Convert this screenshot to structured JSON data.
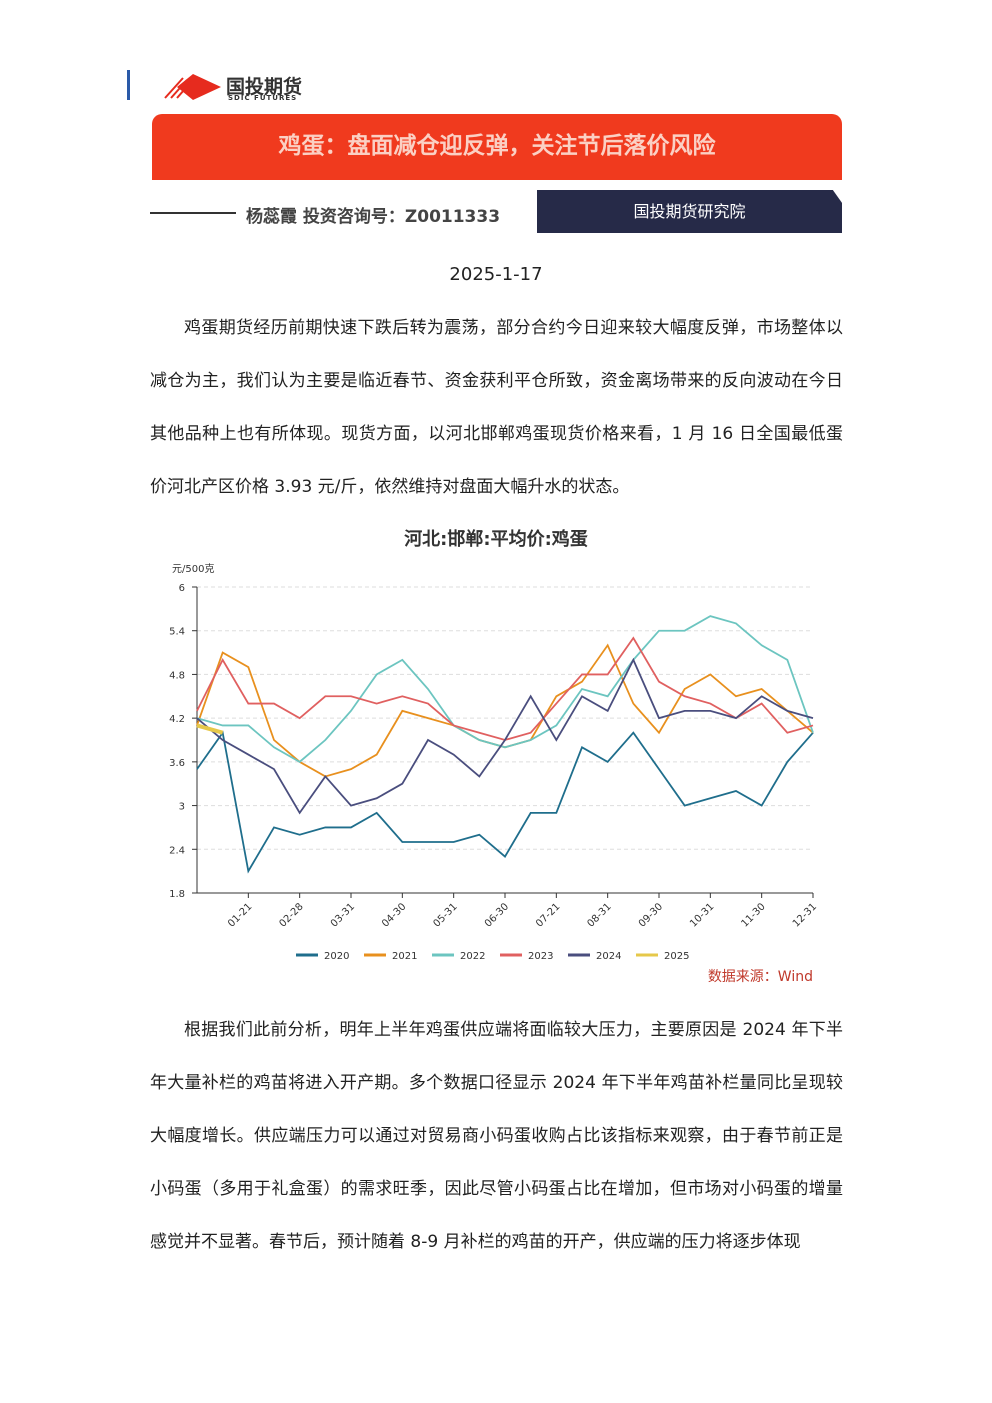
{
  "header": {
    "brand": "国投期货",
    "brand_en": "SDIC FUTURES",
    "title": "鸡蛋：盘面减仓迎反弹，关注节后落价风险",
    "author": "杨蕊霞  投资咨询号：Z0011333",
    "institute": "国投期货研究院",
    "date": "2025-1-17"
  },
  "paragraphs": [
    "鸡蛋期货经历前期快速下跌后转为震荡，部分合约今日迎来较大幅度反弹，市场整体以减仓为主，我们认为主要是临近春节、资金获利平仓所致，资金离场带来的反向波动在今日其他品种上也有所体现。现货方面，以河北邯郸鸡蛋现货价格来看，1 月 16 日全国最低蛋价河北产区价格 3.93 元/斤，依然维持对盘面大幅升水的状态。"
  ],
  "chart_data": {
    "type": "line",
    "title": "河北:邯郸:平均价:鸡蛋",
    "y_label": "元/500克",
    "source": "数据来源：Wind",
    "categories": [
      null,
      null,
      "01-21",
      null,
      "02-28",
      null,
      "03-31",
      null,
      "04-30",
      null,
      "05-31",
      null,
      "06-30",
      null,
      "07-21",
      null,
      "08-31",
      null,
      "09-30",
      null,
      "10-31",
      null,
      "11-30",
      null,
      "12-31"
    ],
    "ylim": [
      1.8,
      6
    ],
    "yticks": [
      1.8,
      2.4,
      3,
      3.6,
      4.2,
      4.8,
      5.4,
      6
    ],
    "grid": true,
    "series": [
      {
        "name": "2020",
        "color": "#1f6e8c",
        "values": [
          3.5,
          4.0,
          2.1,
          2.7,
          2.6,
          2.7,
          2.7,
          2.9,
          2.5,
          2.5,
          2.5,
          2.6,
          2.3,
          2.9,
          2.9,
          3.8,
          3.6,
          4.0,
          3.5,
          3.0,
          3.1,
          3.2,
          3.0,
          3.6,
          4.0
        ]
      },
      {
        "name": "2021",
        "color": "#e8901e",
        "values": [
          4.1,
          5.1,
          4.9,
          3.9,
          3.6,
          3.4,
          3.5,
          3.7,
          4.3,
          4.2,
          4.1,
          3.9,
          3.8,
          3.9,
          4.5,
          4.7,
          5.2,
          4.4,
          4.0,
          4.6,
          4.8,
          4.5,
          4.6,
          4.3,
          4.0
        ]
      },
      {
        "name": "2022",
        "color": "#6cc5c0",
        "values": [
          4.2,
          4.1,
          4.1,
          3.8,
          3.6,
          3.9,
          4.3,
          4.8,
          5.0,
          4.6,
          4.1,
          3.9,
          3.8,
          3.9,
          4.1,
          4.6,
          4.5,
          5.0,
          5.4,
          5.4,
          5.6,
          5.5,
          5.2,
          5.0,
          4.0
        ]
      },
      {
        "name": "2023",
        "color": "#e06060",
        "values": [
          4.3,
          5.0,
          4.4,
          4.4,
          4.2,
          4.5,
          4.5,
          4.4,
          4.5,
          4.4,
          4.1,
          4.0,
          3.9,
          4.0,
          4.4,
          4.8,
          4.8,
          5.3,
          4.7,
          4.5,
          4.4,
          4.2,
          4.4,
          4.0,
          4.1
        ]
      },
      {
        "name": "2024",
        "color": "#4a4e7e",
        "values": [
          4.2,
          3.9,
          3.7,
          3.5,
          2.9,
          3.4,
          3.0,
          3.1,
          3.3,
          3.9,
          3.7,
          3.4,
          3.9,
          4.5,
          3.9,
          4.5,
          4.3,
          5.0,
          4.2,
          4.3,
          4.3,
          4.2,
          4.5,
          4.3,
          4.2
        ]
      },
      {
        "name": "2025",
        "color": "#e6c84a",
        "values": [
          4.1,
          4.0,
          null,
          null,
          null,
          null,
          null,
          null,
          null,
          null,
          null,
          null,
          null,
          null,
          null,
          null,
          null,
          null,
          null,
          null,
          null,
          null,
          null,
          null,
          null
        ]
      }
    ]
  },
  "paragraphs2": [
    "根据我们此前分析，明年上半年鸡蛋供应端将面临较大压力，主要原因是 2024 年下半年大量补栏的鸡苗将进入开产期。多个数据口径显示 2024 年下半年鸡苗补栏量同比呈现较大幅度增长。供应端压力可以通过对贸易商小码蛋收购占比该指标来观察，由于春节前正是小码蛋（多用于礼盒蛋）的需求旺季，因此尽管小码蛋占比在增加，但市场对小码蛋的增量感觉并不显著。春节后，预计随着 8-9 月补栏的鸡苗的开产，供应端的压力将逐步体现"
  ]
}
